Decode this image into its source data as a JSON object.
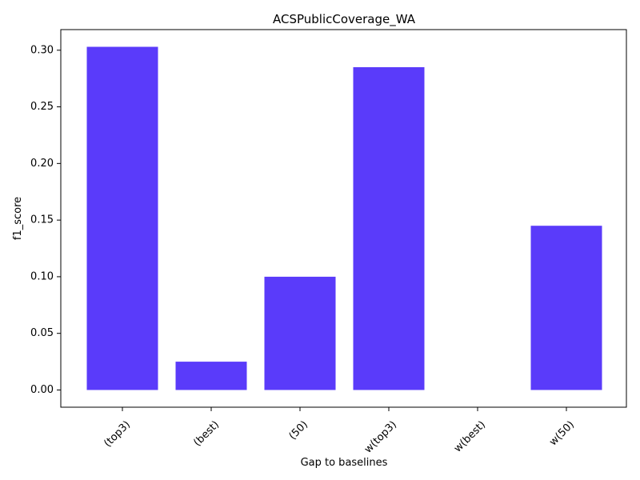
{
  "chart_data": {
    "type": "bar",
    "title": "ACSPublicCoverage_WA",
    "xlabel": "Gap to baselines",
    "ylabel": "f1_score",
    "categories": [
      "(top3)",
      "(best)",
      "(50)",
      "w(top3)",
      "w(best)",
      "w(50)"
    ],
    "values": [
      0.303,
      0.025,
      0.1,
      0.285,
      0.0,
      0.145
    ],
    "ylim": [
      -0.0152,
      0.3182
    ],
    "yticks": [
      0.0,
      0.05,
      0.1,
      0.15,
      0.2,
      0.25,
      0.3
    ],
    "ytick_labels": [
      "0.00",
      "0.05",
      "0.10",
      "0.15",
      "0.20",
      "0.25",
      "0.30"
    ],
    "bar_color": "#5a3bfa",
    "grid": false,
    "xtick_rotation": 45
  }
}
